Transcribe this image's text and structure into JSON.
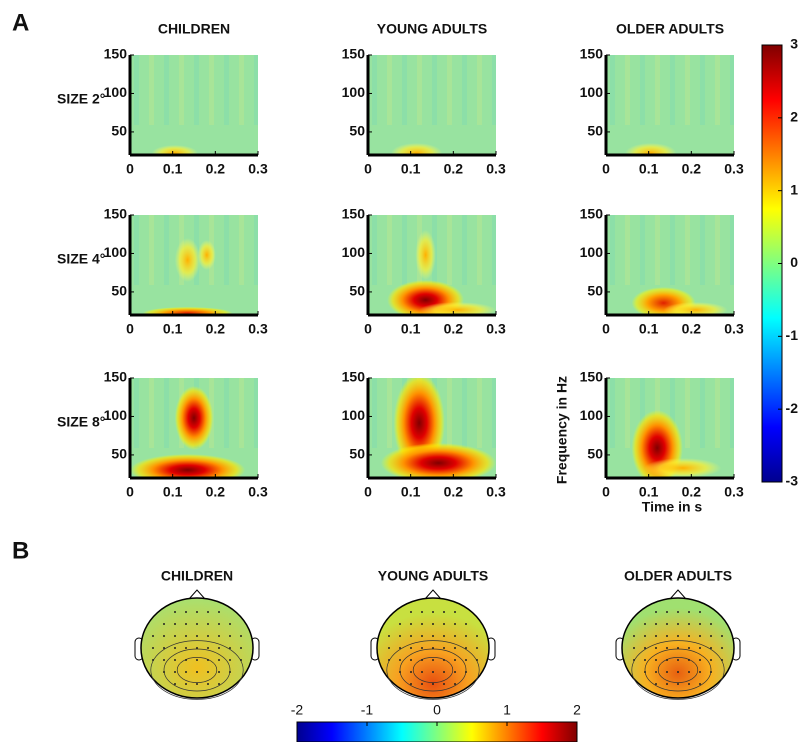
{
  "panel_a": {
    "label": "A",
    "columns": [
      "CHILDREN",
      "YOUNG ADULTS",
      "OLDER ADULTS"
    ],
    "rows": [
      "SIZE 2°",
      "SIZE 4°",
      "SIZE 8°"
    ],
    "xlim": [
      0,
      0.3
    ],
    "xticks": [
      0,
      0.1,
      0.2,
      0.3
    ],
    "ylim": [
      20,
      150
    ],
    "yticks": [
      50,
      100,
      150
    ],
    "xlabel": "Time in s",
    "ylabel": "Frequency in Hz",
    "colorbar": {
      "lim": [
        -3,
        3
      ],
      "ticks": [
        -3,
        -2,
        -1,
        0,
        1,
        2,
        3
      ]
    }
  },
  "panel_b": {
    "label": "B",
    "columns": [
      "CHILDREN",
      "YOUNG ADULTS",
      "OLDER ADULTS"
    ],
    "colorbar": {
      "lim": [
        -2,
        2
      ],
      "ticks": [
        -2,
        -1,
        0,
        1,
        2
      ]
    }
  }
}
